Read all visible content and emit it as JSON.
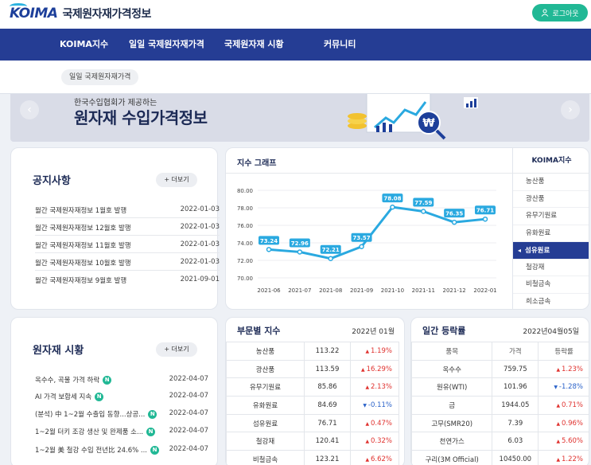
{
  "header": {
    "logo": "KOIMA",
    "site_title": "국제원자재가격정보",
    "login_label": "로그아웃"
  },
  "nav": {
    "items": [
      "KOIMA지수",
      "일일 국제원자재가격",
      "국제원자재 시황",
      "커뮤니티"
    ],
    "sub_item": "일일 국제원자재가격"
  },
  "banner": {
    "subtitle": "한국수입협회가 제공하는",
    "title": "원자재 수입가격정보",
    "prev": "‹",
    "next": "›"
  },
  "notice": {
    "title": "공지사항",
    "more": "+ 더보기",
    "rows": [
      {
        "title": "월간 국제원자재정보 1월호 발행",
        "date": "2022-01-03"
      },
      {
        "title": "월간 국제원자재정보 12월호 발행",
        "date": "2022-01-03"
      },
      {
        "title": "월간 국제원자재정보 11월호 발행",
        "date": "2022-01-03"
      },
      {
        "title": "월간 국제원자재정보 10월호 발행",
        "date": "2022-01-03"
      },
      {
        "title": "월간 국제원자재정보 9월호 발행",
        "date": "2021-09-01"
      }
    ]
  },
  "market": {
    "title": "원자재 시황",
    "more": "+ 더보기",
    "badge": "N",
    "rows": [
      {
        "title": "옥수수, 곡물 가격 하락",
        "date": "2022-04-07"
      },
      {
        "title": "AI 가격 보합세 지속",
        "date": "2022-04-07"
      },
      {
        "title": "(분석) 中 1~2월 수출입 동향...상공...",
        "date": "2022-04-07"
      },
      {
        "title": "1~2월 터키 조강 생산 및 완제품 소...",
        "date": "2022-04-07"
      },
      {
        "title": "1~2월 美 철강 수입 전년比 24.6% ...",
        "date": "2022-04-07"
      }
    ]
  },
  "graph": {
    "title": "지수 그래프",
    "side_title": "KOIMA지수",
    "side_items": [
      "농산품",
      "광산품",
      "유무기원료",
      "유화원료",
      "섬유원료",
      "철강재",
      "비철금속",
      "희소금속"
    ],
    "active_index": 4
  },
  "chart_data": {
    "type": "line",
    "x": [
      "2021-06",
      "2021-07",
      "2021-08",
      "2021-09",
      "2021-10",
      "2021-11",
      "2021-12",
      "2022-01"
    ],
    "values": [
      73.24,
      72.96,
      72.21,
      73.57,
      78.08,
      77.59,
      76.35,
      76.71
    ],
    "labels": [
      "73.24",
      "72.96",
      "72.21",
      "73.57",
      "78.08",
      "77.59",
      "76.35",
      "76.71"
    ],
    "yticks": [
      "80.00",
      "78.00",
      "76.00",
      "74.00",
      "72.00",
      "70.00"
    ],
    "ylim": [
      70,
      80
    ],
    "color": "#2aa9e0"
  },
  "sector_index": {
    "title": "부문별 지수",
    "date": "2022년 01월",
    "rows": [
      {
        "name": "농산품",
        "value": "113.22",
        "change": "1.19%",
        "dir": "up"
      },
      {
        "name": "광산품",
        "value": "113.59",
        "change": "16.29%",
        "dir": "up"
      },
      {
        "name": "유무기원료",
        "value": "85.86",
        "change": "2.13%",
        "dir": "up"
      },
      {
        "name": "유화원료",
        "value": "84.69",
        "change": "-0.11%",
        "dir": "down"
      },
      {
        "name": "섬유원료",
        "value": "76.71",
        "change": "0.47%",
        "dir": "up"
      },
      {
        "name": "철강재",
        "value": "120.41",
        "change": "0.32%",
        "dir": "up"
      },
      {
        "name": "비철금속",
        "value": "123.21",
        "change": "6.62%",
        "dir": "up"
      }
    ]
  },
  "daily": {
    "title": "일간 등락률",
    "date": "2022년04월05일",
    "headers": [
      "품목",
      "가격",
      "등락률"
    ],
    "rows": [
      {
        "name": "옥수수",
        "price": "759.75",
        "change": "1.23%",
        "dir": "up"
      },
      {
        "name": "원유(WTI)",
        "price": "101.96",
        "change": "-1.28%",
        "dir": "down"
      },
      {
        "name": "금",
        "price": "1944.05",
        "change": "0.71%",
        "dir": "up"
      },
      {
        "name": "고무(SMR20)",
        "price": "7.39",
        "change": "0.96%",
        "dir": "up"
      },
      {
        "name": "천연가스",
        "price": "6.03",
        "change": "5.60%",
        "dir": "up"
      },
      {
        "name": "구리(3M Official)",
        "price": "10450.00",
        "change": "1.22%",
        "dir": "up"
      }
    ]
  },
  "colors": {
    "nav": "#253d94",
    "accent": "#21b895",
    "up": "#e0322f",
    "down": "#2a62c9"
  }
}
